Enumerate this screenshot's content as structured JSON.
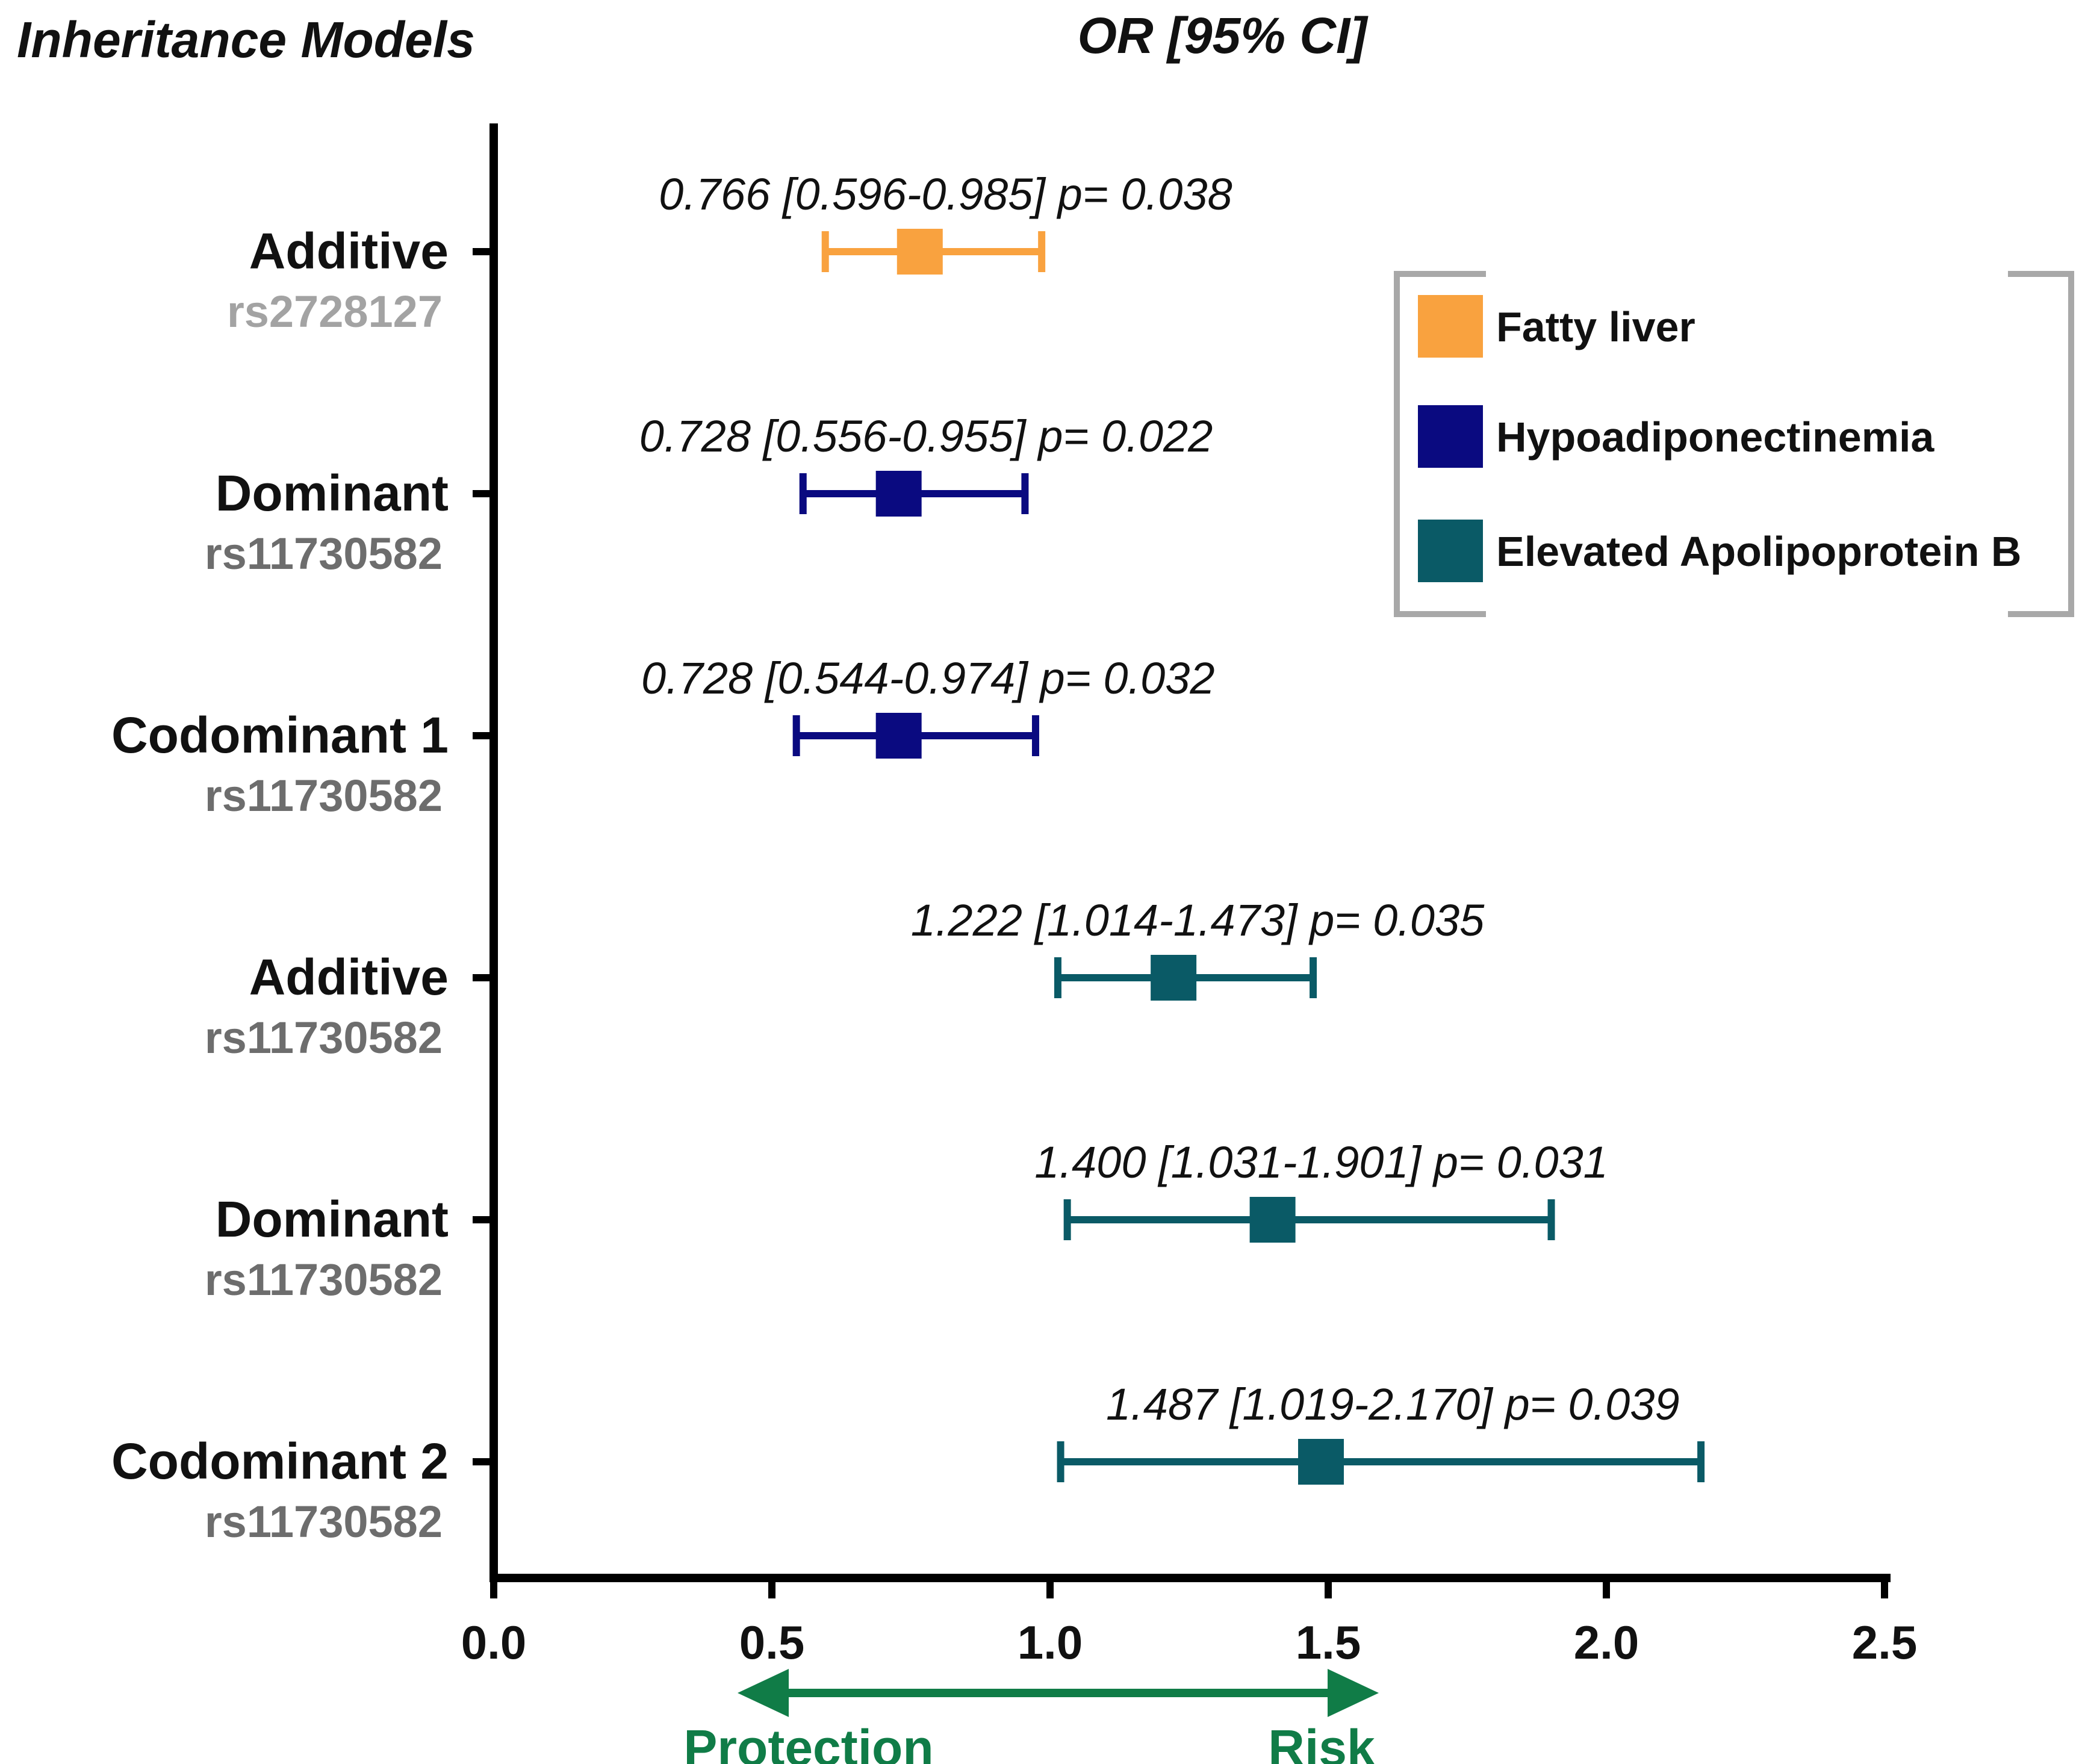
{
  "chart_data": {
    "type": "forest",
    "title_left": "Inheritance Models",
    "title_center": "OR [95% CI]",
    "xlim": [
      0.0,
      2.5
    ],
    "xticks": [
      "0.0",
      "0.5",
      "1.0",
      "1.5",
      "2.0",
      "2.5"
    ],
    "colors": {
      "fatty_liver": "#F9A23F",
      "hypoadiponectinemia": "#0A0A80",
      "apob": "#0A5A66",
      "arrow": "#107C47",
      "snp": "#6D6D6D",
      "snp_light": "#A3A3A3",
      "legend_frame": "#A8A8A8"
    },
    "legend": [
      {
        "label": "Fatty liver",
        "series": "fatty_liver"
      },
      {
        "label": "Hypoadiponectinemia",
        "series": "hypoadiponectinemia"
      },
      {
        "label": "Elevated Apolipoprotein B",
        "series": "apob"
      }
    ],
    "rows": [
      {
        "model": "Additive",
        "snp": "rs2728127",
        "series": "fatty_liver",
        "or": 0.766,
        "lo": 0.596,
        "hi": 0.985,
        "p": 0.038,
        "annotation": "0.766 [0.596-0.985] p= 0.038"
      },
      {
        "model": "Dominant",
        "snp": "rs11730582",
        "series": "hypoadiponectinemia",
        "or": 0.728,
        "lo": 0.556,
        "hi": 0.955,
        "p": 0.022,
        "annotation": "0.728 [0.556-0.955] p= 0.022"
      },
      {
        "model": "Codominant 1",
        "snp": "rs11730582",
        "series": "hypoadiponectinemia",
        "or": 0.728,
        "lo": 0.544,
        "hi": 0.974,
        "p": 0.032,
        "annotation": "0.728 [0.544-0.974] p= 0.032"
      },
      {
        "model": "Additive",
        "snp": "rs11730582",
        "series": "apob",
        "or": 1.222,
        "lo": 1.014,
        "hi": 1.473,
        "p": 0.035,
        "annotation": "1.222 [1.014-1.473] p= 0.035"
      },
      {
        "model": "Dominant",
        "snp": "rs11730582",
        "series": "apob",
        "or": 1.4,
        "lo": 1.031,
        "hi": 1.901,
        "p": 0.031,
        "annotation": "1.400 [1.031-1.901] p= 0.031"
      },
      {
        "model": "Codominant 2",
        "snp": "rs11730582",
        "series": "apob",
        "or": 1.487,
        "lo": 1.019,
        "hi": 2.17,
        "p": 0.039,
        "annotation": "1.487 [1.019-2.170] p= 0.039"
      }
    ],
    "arrow_labels": {
      "left": "Protection",
      "right": "Risk"
    }
  }
}
